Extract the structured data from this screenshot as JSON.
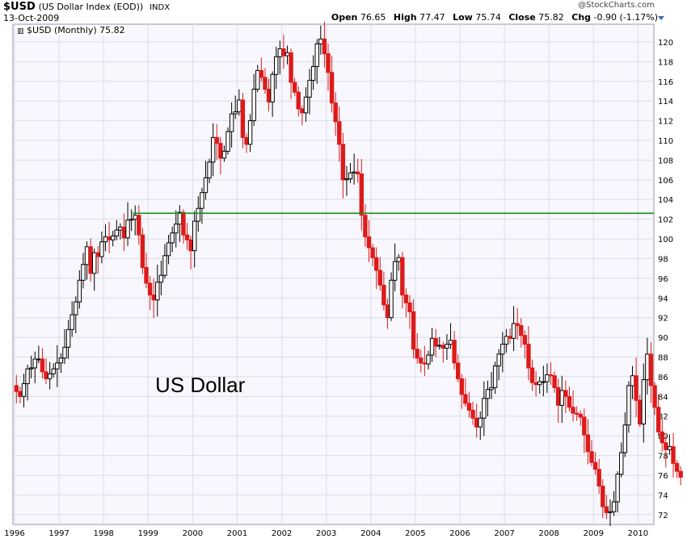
{
  "header": {
    "symbol": "$USD",
    "name": "(US Dollar Index (EOD))",
    "exchange": "INDX",
    "date": "13-Oct-2009",
    "credit": "@StockCharts.com",
    "ohlc": {
      "open_label": "Open",
      "open": "76.65",
      "high_label": "High",
      "high": "77.47",
      "low_label": "Low",
      "low": "75.74",
      "close_label": "Close",
      "close": "75.82",
      "chg_label": "Chg",
      "chg": "-0.90 (-1.17%)"
    }
  },
  "legend": {
    "text": "$USD (Monthly) 75.82"
  },
  "annotation": "US Dollar",
  "colors": {
    "up": "#000000",
    "down": "#dd1a1a",
    "line": "#1a8c1a",
    "grid": "#dcdcea",
    "plot_bg": "#f7f7fd"
  },
  "chart_data": {
    "type": "candlestick",
    "x_tick_labels": [
      "1996",
      "1997",
      "1998",
      "1999",
      "2000",
      "2001",
      "2002",
      "2003",
      "2004",
      "2005",
      "2006",
      "2007",
      "2008",
      "2009",
      "2010"
    ],
    "y_tick_labels": [
      72,
      74,
      76,
      78,
      80,
      82,
      84,
      86,
      88,
      90,
      92,
      94,
      96,
      98,
      100,
      102,
      104,
      106,
      108,
      110,
      112,
      114,
      116,
      118,
      120
    ],
    "ylim": [
      71,
      121.8
    ],
    "x_start_year": 1996,
    "horizontal_line": {
      "y": 102.6,
      "from": 1998.65,
      "to": 2010.5
    },
    "closes": [
      84.5,
      84.0,
      85.3,
      86.8,
      86.9,
      87.8,
      87.8,
      86.5,
      85.8,
      86.3,
      86.8,
      87.4,
      87.9,
      89.0,
      90.8,
      92.3,
      93.6,
      95.8,
      97.4,
      99.2,
      96.5,
      98.6,
      98.2,
      99.7,
      100.2,
      99.9,
      100.3,
      100.9,
      101.2,
      100.1,
      101.9,
      102.0,
      102.4,
      100.4,
      97.1,
      95.5,
      94.3,
      93.8,
      95.6,
      96.3,
      98.3,
      99.6,
      100.6,
      101.5,
      102.7,
      100.4,
      99.9,
      98.8,
      101.8,
      103.1,
      104.7,
      106.2,
      107.8,
      110.3,
      109.7,
      108.2,
      108.9,
      110.9,
      112.7,
      112.9,
      114.1,
      110.3,
      109.6,
      112.0,
      115.2,
      117.1,
      116.4,
      115.2,
      113.9,
      116.7,
      118.5,
      119.3,
      118.6,
      118.9,
      115.9,
      114.9,
      113.2,
      112.8,
      114.4,
      116.1,
      117.5,
      119.8,
      120.3,
      118.8,
      116.9,
      113.8,
      111.9,
      109.6,
      106.0,
      106.1,
      106.7,
      106.8,
      106.6,
      102.4,
      100.2,
      99.1,
      98.1,
      96.8,
      95.3,
      93.3,
      92.0,
      95.8,
      97.7,
      98.1,
      94.3,
      93.5,
      92.6,
      88.8,
      87.9,
      87.4,
      87.3,
      88.2,
      89.9,
      89.1,
      89.2,
      88.9,
      89.3,
      89.7,
      87.4,
      85.8,
      84.2,
      83.3,
      82.6,
      81.8,
      80.9,
      81.8,
      83.8,
      84.7,
      84.9,
      87.1,
      88.3,
      89.3,
      90.1,
      89.9,
      91.4,
      91.2,
      90.2,
      89.3,
      86.9,
      85.4,
      85.2,
      85.5,
      85.5,
      86.2,
      86.1,
      84.9,
      83.1,
      84.6,
      84.0,
      82.9,
      82.3,
      82.2,
      81.9,
      80.1,
      78.4,
      77.3,
      76.6,
      74.9,
      72.8,
      72.2,
      72.3,
      73.3,
      76.1,
      78.3,
      81.1,
      85.1,
      86.1,
      83.6,
      81.2,
      85.7,
      88.3,
      85.1,
      82.9,
      80.4,
      79.3,
      78.6,
      78.9,
      77.2,
      76.4,
      75.8
    ]
  }
}
